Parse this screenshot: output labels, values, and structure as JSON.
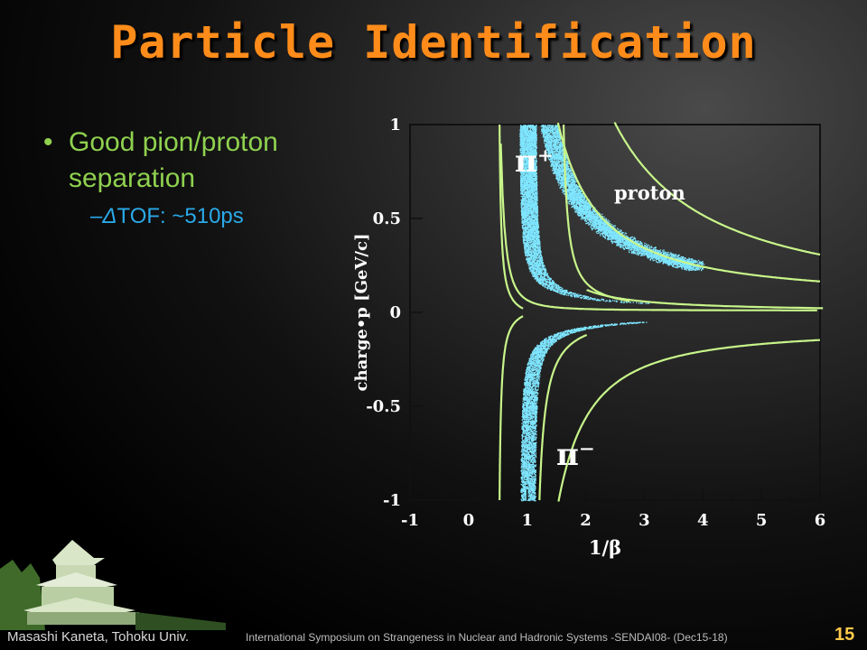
{
  "slide": {
    "title": "Particle Identification",
    "bullet1": "Good pion/proton separation",
    "bullet2_prefix": "–",
    "bullet2_delta": "Δ",
    "bullet2_text": "TOF: ~510ps",
    "page_number": "15"
  },
  "footer": {
    "author": "Masashi Kaneta, Tohoku Univ.",
    "conference": "International Symposium on Strangeness in Nuclear and Hadronic Systems -SENDAI08- (Dec15-18)"
  },
  "plot": {
    "xlabel": "1/β",
    "ylabel": "charge•p [GeV/c]",
    "xticks": [
      "-1",
      "0",
      "1",
      "2",
      "3",
      "4",
      "5",
      "6"
    ],
    "yticks": [
      "1",
      "0.5",
      "0",
      "-0.5",
      "-1"
    ],
    "labels": {
      "pi_plus": "π⁺",
      "pi_minus": "π⁻",
      "proton": "proton"
    },
    "colors": {
      "points": "#7fe6ff",
      "curves": "#c8f58a",
      "frame": "#000000"
    }
  }
}
